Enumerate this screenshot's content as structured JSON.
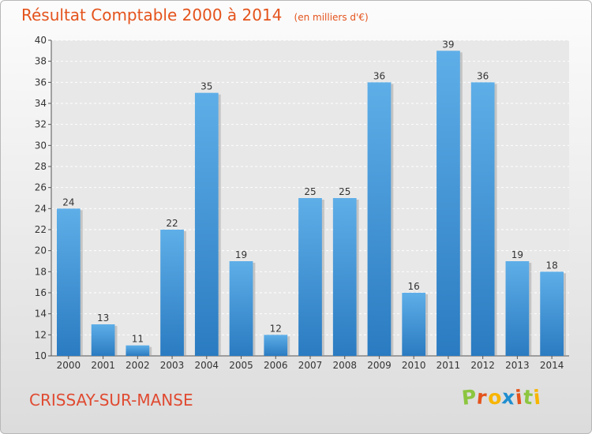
{
  "chart_data": {
    "type": "bar",
    "title": "Résultat Comptable 2000 à 2014",
    "subtitle": "(en milliers d'€)",
    "categories": [
      "2000",
      "2001",
      "2002",
      "2003",
      "2004",
      "2005",
      "2006",
      "2007",
      "2008",
      "2009",
      "2010",
      "2011",
      "2012",
      "2013",
      "2014"
    ],
    "values": [
      24,
      13,
      11,
      22,
      35,
      19,
      12,
      25,
      25,
      36,
      16,
      39,
      36,
      19,
      18
    ],
    "ylim": [
      10,
      40
    ],
    "yticks": [
      10,
      12,
      14,
      16,
      18,
      20,
      22,
      24,
      26,
      28,
      30,
      32,
      34,
      36,
      38,
      40
    ],
    "xlabel": "",
    "ylabel": "",
    "grid": true,
    "bar_color": "#3b8fd6"
  },
  "location": "CRISSAY-SUR-MANSE",
  "logo": {
    "letters": [
      "P",
      "r",
      "o",
      "x",
      "i",
      "t",
      "i"
    ],
    "colors": [
      "#8cc63f",
      "#e4531c",
      "#f7b500",
      "#1f8ecf",
      "#e4531c",
      "#8cc63f",
      "#f7b500"
    ]
  }
}
